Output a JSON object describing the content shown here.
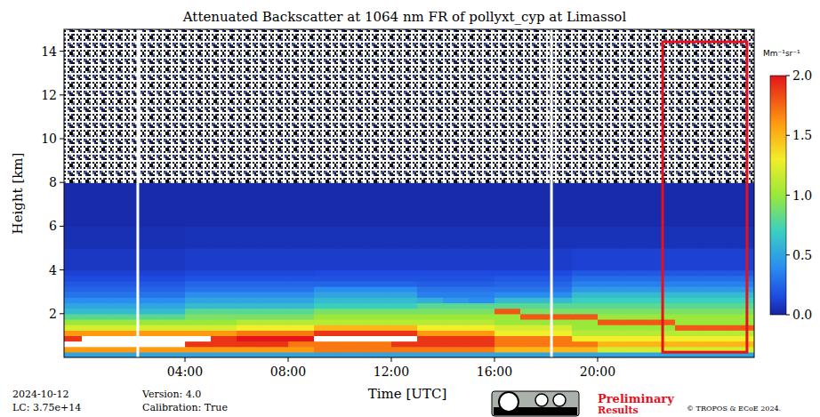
{
  "chart_data": {
    "type": "heatmap",
    "title": "Attenuated Backscatter at 1064 nm FR of pollyxt_cyp at Limassol",
    "x_label": "Time [UTC]",
    "y_label": "Height [km]",
    "x_edges": [
      -1,
      0,
      1,
      2,
      3,
      4,
      5,
      6,
      7,
      8,
      9,
      10,
      11,
      12,
      13,
      14,
      15,
      16,
      17,
      18,
      19,
      20,
      21,
      22,
      23,
      24,
      25,
      26,
      27
    ],
    "y_edges": [
      0,
      0.25,
      0.5,
      0.75,
      1,
      1.25,
      1.5,
      1.75,
      2,
      2.25,
      2.5,
      2.75,
      3,
      3.25,
      3.5,
      3.75,
      4,
      5,
      6,
      8,
      15
    ],
    "z": [
      [
        0.5,
        0.5,
        0.5,
        0.5,
        0.5,
        0.5,
        0.5,
        0.5,
        0.5,
        0.5,
        0.5,
        0.5,
        0.5,
        0.5,
        0.5,
        0.5,
        0.5,
        0.5,
        0.5,
        0.5,
        0.5,
        0.5,
        0.5,
        0.5,
        0.5,
        0.5,
        0.5,
        0.5
      ],
      [
        1.6,
        1.6,
        1.6,
        1.6,
        1.6,
        1.6,
        1.6,
        1.6,
        1.6,
        1.6,
        1.7,
        1.7,
        1.7,
        1.7,
        1.7,
        1.7,
        1.7,
        1.5,
        1.5,
        1.5,
        1.5,
        1.2,
        1.2,
        1.2,
        1.2,
        1.2,
        1.2,
        1.2
      ],
      [
        2.1,
        2.1,
        2.1,
        2.1,
        2.1,
        1.9,
        1.9,
        1.9,
        1.9,
        1.7,
        1.7,
        1.7,
        1.7,
        1.9,
        1.9,
        1.9,
        1.9,
        1.7,
        1.7,
        1.7,
        1.7,
        1.5,
        1.5,
        1.5,
        1.5,
        1.5,
        1.5,
        1.5
      ],
      [
        1.9,
        2.1,
        2.1,
        2.1,
        2.1,
        2.1,
        1.9,
        2.0,
        2.0,
        2.0,
        2.1,
        2.1,
        2.1,
        2.1,
        1.9,
        1.9,
        1.9,
        1.7,
        1.7,
        1.7,
        1.3,
        1.3,
        1.3,
        1.3,
        1.3,
        1.3,
        1.3,
        1.3
      ],
      [
        1.6,
        1.6,
        1.6,
        1.6,
        1.6,
        1.6,
        1.6,
        1.7,
        1.7,
        1.7,
        1.9,
        1.9,
        1.9,
        1.9,
        1.6,
        1.6,
        1.6,
        1.3,
        1.3,
        1.3,
        1.1,
        1.1,
        1.1,
        1.1,
        1.1,
        1.1,
        1.1,
        1.1
      ],
      [
        1.2,
        1.2,
        1.2,
        1.2,
        1.2,
        1.2,
        1.2,
        1.3,
        1.3,
        1.3,
        1.5,
        1.5,
        1.5,
        1.5,
        1.3,
        1.3,
        1.3,
        1.2,
        1.2,
        1.2,
        1.0,
        1.0,
        1.0,
        1.0,
        1.8,
        1.8,
        1.8,
        1.8
      ],
      [
        1.0,
        1.0,
        1.0,
        1.0,
        1.0,
        1.0,
        1.0,
        1.1,
        1.1,
        1.1,
        1.1,
        1.1,
        1.1,
        1.1,
        1.1,
        1.1,
        1.1,
        1.0,
        1.0,
        1.0,
        1.0,
        1.8,
        1.8,
        1.8,
        1.0,
        1.0,
        1.0,
        1.0
      ],
      [
        0.8,
        0.8,
        0.8,
        0.8,
        0.8,
        0.9,
        0.9,
        0.9,
        0.9,
        0.9,
        1.0,
        1.0,
        1.0,
        1.0,
        1.0,
        1.0,
        1.0,
        1.0,
        1.8,
        1.8,
        1.8,
        1.0,
        1.0,
        1.0,
        1.0,
        1.0,
        1.0,
        1.0
      ],
      [
        0.6,
        0.6,
        0.6,
        0.6,
        0.6,
        0.8,
        0.8,
        0.8,
        0.8,
        0.8,
        0.9,
        0.9,
        0.9,
        0.9,
        0.9,
        0.9,
        0.9,
        1.8,
        0.9,
        0.9,
        0.9,
        0.9,
        0.9,
        0.9,
        0.9,
        0.9,
        0.9,
        0.9
      ],
      [
        0.5,
        0.5,
        0.5,
        0.5,
        0.5,
        0.6,
        0.6,
        0.6,
        0.6,
        0.6,
        0.7,
        0.7,
        0.7,
        0.7,
        0.8,
        0.8,
        0.8,
        0.8,
        0.8,
        0.8,
        0.8,
        0.8,
        0.8,
        0.8,
        0.8,
        0.8,
        0.8,
        0.8
      ],
      [
        0.4,
        0.4,
        0.4,
        0.4,
        0.4,
        0.5,
        0.5,
        0.5,
        0.5,
        0.5,
        0.6,
        0.6,
        0.6,
        0.6,
        0.55,
        0.45,
        0.4,
        0.6,
        0.6,
        0.6,
        0.7,
        0.7,
        0.7,
        0.7,
        0.7,
        0.7,
        0.7,
        0.7
      ],
      [
        0.3,
        0.3,
        0.3,
        0.3,
        0.3,
        0.4,
        0.4,
        0.4,
        0.4,
        0.4,
        0.5,
        0.5,
        0.5,
        0.5,
        0.35,
        0.35,
        0.35,
        0.4,
        0.4,
        0.4,
        0.6,
        0.6,
        0.6,
        0.6,
        0.6,
        0.6,
        0.6,
        0.6
      ],
      [
        0.25,
        0.25,
        0.25,
        0.25,
        0.25,
        0.3,
        0.3,
        0.3,
        0.3,
        0.3,
        0.4,
        0.4,
        0.4,
        0.4,
        0.3,
        0.3,
        0.3,
        0.3,
        0.3,
        0.3,
        0.45,
        0.45,
        0.45,
        0.45,
        0.45,
        0.45,
        0.45,
        0.45
      ],
      [
        0.2,
        0.2,
        0.2,
        0.2,
        0.2,
        0.25,
        0.25,
        0.25,
        0.25,
        0.25,
        0.25,
        0.25,
        0.25,
        0.25,
        0.22,
        0.22,
        0.22,
        0.25,
        0.25,
        0.25,
        0.35,
        0.35,
        0.35,
        0.35,
        0.35,
        0.35,
        0.35,
        0.35
      ],
      [
        0.15,
        0.15,
        0.15,
        0.15,
        0.15,
        0.18,
        0.18,
        0.18,
        0.18,
        0.18,
        0.18,
        0.18,
        0.18,
        0.18,
        0.18,
        0.18,
        0.18,
        0.2,
        0.2,
        0.2,
        0.28,
        0.28,
        0.28,
        0.28,
        0.28,
        0.28,
        0.28,
        0.28
      ],
      [
        0.12,
        0.12,
        0.12,
        0.12,
        0.12,
        0.14,
        0.14,
        0.14,
        0.14,
        0.14,
        0.15,
        0.15,
        0.15,
        0.15,
        0.15,
        0.15,
        0.15,
        0.15,
        0.15,
        0.15,
        0.2,
        0.2,
        0.2,
        0.2,
        0.2,
        0.2,
        0.2,
        0.2
      ],
      [
        0.08,
        0.08,
        0.08,
        0.08,
        0.08,
        0.1,
        0.1,
        0.1,
        0.1,
        0.1,
        0.1,
        0.1,
        0.1,
        0.1,
        0.1,
        0.1,
        0.1,
        0.1,
        0.1,
        0.1,
        0.12,
        0.12,
        0.12,
        0.12,
        0.12,
        0.12,
        0.12,
        0.12
      ],
      [
        0.05,
        0.05,
        0.05,
        0.05,
        0.05,
        0.06,
        0.06,
        0.06,
        0.06,
        0.06,
        0.06,
        0.06,
        0.06,
        0.06,
        0.06,
        0.06,
        0.06,
        0.06,
        0.06,
        0.06,
        0.06,
        0.06,
        0.06,
        0.06,
        0.06,
        0.06,
        0.06,
        0.06
      ],
      [
        0.03,
        0.03,
        0.03,
        0.03,
        0.03,
        0.03,
        0.03,
        0.03,
        0.03,
        0.03,
        0.03,
        0.03,
        0.03,
        0.03,
        0.03,
        0.03,
        0.03,
        0.03,
        0.03,
        0.03,
        0.03,
        0.03,
        0.03,
        0.03,
        0.03,
        0.03,
        0.03,
        0.03
      ],
      [
        null,
        null,
        null,
        null,
        null,
        null,
        null,
        null,
        null,
        null,
        null,
        null,
        null,
        null,
        null,
        null,
        null,
        null,
        null,
        null,
        null,
        null,
        null,
        null,
        null,
        null,
        null,
        null
      ]
    ],
    "xlim": [
      -0.69,
      26.07
    ],
    "ylim": [
      0,
      15
    ],
    "xticks": [
      {
        "value": 4,
        "label": "04:00"
      },
      {
        "value": 8,
        "label": "08:00"
      },
      {
        "value": 12,
        "label": "12:00"
      },
      {
        "value": 16,
        "label": "16:00"
      },
      {
        "value": 20,
        "label": "20:00"
      }
    ],
    "yticks": [
      2,
      4,
      6,
      8,
      10,
      12,
      14
    ],
    "colorbar": {
      "range": [
        0,
        2
      ],
      "ticks": [
        {
          "value": 0,
          "label": "0.0"
        },
        {
          "value": 0.5,
          "label": "0.5"
        },
        {
          "value": 1,
          "label": "1.0"
        },
        {
          "value": 1.5,
          "label": "1.5"
        },
        {
          "value": 2,
          "label": "2.0"
        }
      ],
      "label": "Mm⁻¹sr⁻¹"
    },
    "gaps": [
      2.17,
      18.21
    ],
    "highlight": {
      "x": [
        22.52,
        25.79
      ],
      "y": [
        0.24,
        14.43
      ],
      "color": "#e8101c"
    }
  },
  "footer": {
    "date": "2024-10-12",
    "lc": "LC: 3.75e+14",
    "version": "Version: 4.0",
    "calibration": "Calibration: True",
    "status": [
      "Preliminary",
      "Results"
    ],
    "copyright": "© TROPOS & ECoE 2024."
  }
}
